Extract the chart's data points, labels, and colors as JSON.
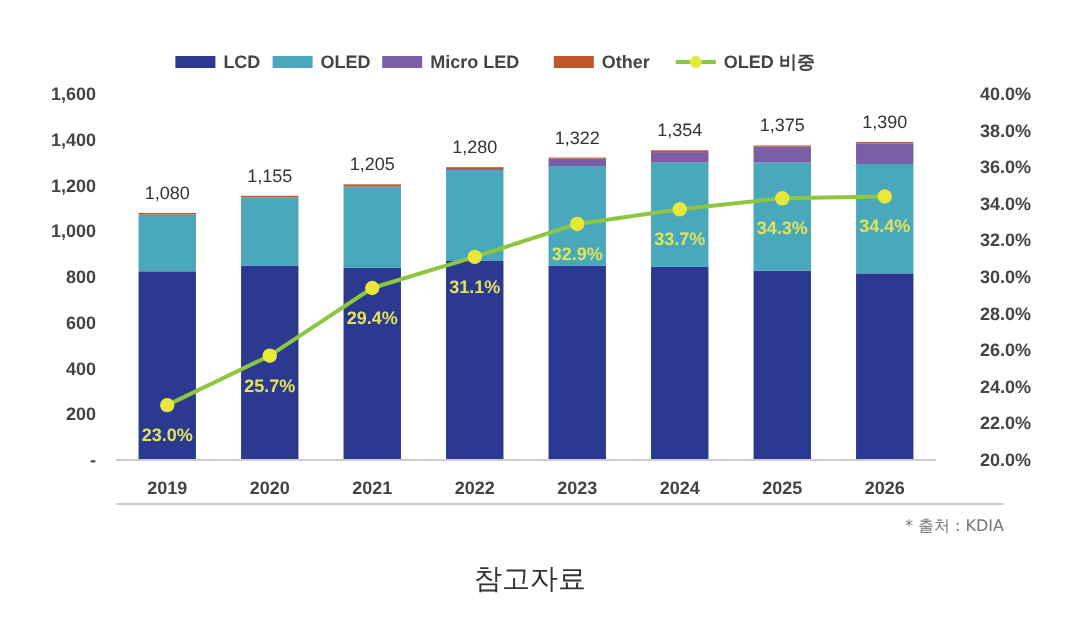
{
  "chart_data": {
    "type": "bar",
    "stacked": true,
    "categories": [
      "2019",
      "2020",
      "2021",
      "2022",
      "2023",
      "2024",
      "2025",
      "2026"
    ],
    "series": [
      {
        "name": "LCD",
        "color": "#2b3990",
        "values": [
          825,
          850,
          840,
          870,
          850,
          844,
          828,
          816
        ]
      },
      {
        "name": "OLED",
        "color": "#4aa8bd",
        "values": [
          248,
          297,
          354,
          398,
          435,
          456,
          472,
          478
        ]
      },
      {
        "name": "Micro LED",
        "color": "#7b5ea7",
        "values": [
          0,
          1,
          2,
          4,
          32,
          46,
          70,
          90
        ]
      },
      {
        "name": "Other",
        "color": "#c0562a",
        "values": [
          7,
          7,
          9,
          8,
          5,
          8,
          5,
          6
        ]
      },
      {
        "name": "OLED 비중",
        "type": "line",
        "axis": "y2",
        "color": "#8dc63f",
        "marker": "circle",
        "values": [
          23.0,
          25.7,
          29.4,
          31.1,
          32.9,
          33.7,
          34.3,
          34.4
        ],
        "value_labels": [
          "23.0%",
          "25.7%",
          "29.4%",
          "31.1%",
          "32.9%",
          "33.7%",
          "34.3%",
          "34.4%"
        ]
      }
    ],
    "totals": [
      "1,080",
      "1,155",
      "1,205",
      "1,280",
      "1,322",
      "1,354",
      "1,375",
      "1,390"
    ],
    "ylim": [
      0,
      1600
    ],
    "yticks": [
      {
        "value": 0,
        "label": "-"
      },
      {
        "value": 200,
        "label": "200"
      },
      {
        "value": 400,
        "label": "400"
      },
      {
        "value": 600,
        "label": "600"
      },
      {
        "value": 800,
        "label": "800"
      },
      {
        "value": 1000,
        "label": "1,000"
      },
      {
        "value": 1200,
        "label": "1,200"
      },
      {
        "value": 1400,
        "label": "1,400"
      },
      {
        "value": 1600,
        "label": "1,600"
      }
    ],
    "y2lim": [
      20,
      40
    ],
    "y2ticks": [
      {
        "value": 20,
        "label": "20.0%"
      },
      {
        "value": 22,
        "label": "22.0%"
      },
      {
        "value": 24,
        "label": "24.0%"
      },
      {
        "value": 26,
        "label": "26.0%"
      },
      {
        "value": 28,
        "label": "28.0%"
      },
      {
        "value": 30,
        "label": "30.0%"
      },
      {
        "value": 32,
        "label": "32.0%"
      },
      {
        "value": 34,
        "label": "34.0%"
      },
      {
        "value": 36,
        "label": "36.0%"
      },
      {
        "value": 38,
        "label": "38.0%"
      },
      {
        "value": 40,
        "label": "40.0%"
      }
    ],
    "grid": false,
    "legend": "top",
    "annotations": [
      "* 출처 : KDIA",
      "참고자료"
    ]
  }
}
